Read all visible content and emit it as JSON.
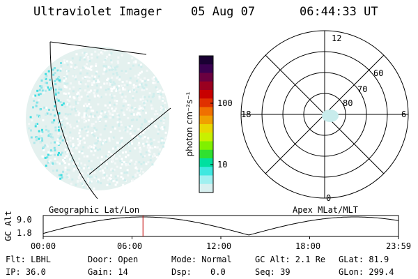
{
  "header": {
    "instrument": "Ultraviolet Imager",
    "date": "05 Aug 07",
    "time": "06:44:33 UT"
  },
  "colorbar": {
    "unit_label": "photon cm⁻²s⁻¹",
    "ticks": [
      "100",
      "10"
    ],
    "colors": [
      "#1a0033",
      "#3a0050",
      "#6a0040",
      "#9a0020",
      "#c80000",
      "#e03000",
      "#f07000",
      "#f0a000",
      "#e8d800",
      "#c8f000",
      "#80f000",
      "#30e030",
      "#00e0a0",
      "#40e8e0",
      "#a0f0f0",
      "#d8f0f0"
    ]
  },
  "polar_plot": {
    "mlt_labels": {
      "top": "12",
      "left": "18",
      "right": "6",
      "bottom": "0"
    },
    "lat_labels": [
      "60",
      "70",
      "80"
    ]
  },
  "timeline": {
    "left_label": "Geographic Lat/Lon",
    "right_label": "Apex MLat/MLT",
    "y_axis_title": "GC Alt",
    "y_ticks": [
      "9.0",
      "1.8"
    ],
    "x_ticks": [
      "00:00",
      "06:00",
      "12:00",
      "18:00",
      "23:59"
    ],
    "marker_time_hours": 6.74
  },
  "info": {
    "flt": "Flt: LBHL",
    "ip": "IP: 36.0",
    "door": "Door: Open",
    "gain": "Gain: 14",
    "mode": "Mode: Normal",
    "dsp_label": "Dsp:",
    "dsp_value": "0.0",
    "gc_alt": "GC Alt: 2.1 Re",
    "seq": "Seq: 39",
    "glat": "GLat:  81.9",
    "glon": "GLon: 299.4"
  }
}
